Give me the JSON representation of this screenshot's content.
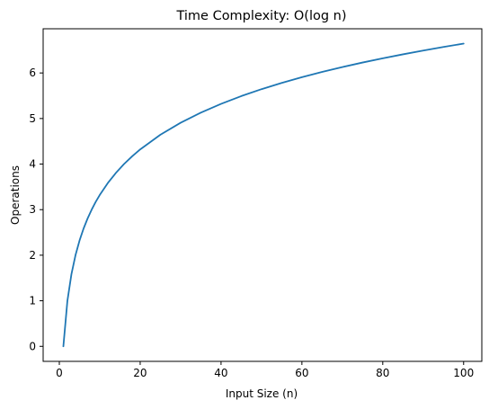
{
  "chart_data": {
    "type": "line",
    "title": "Time Complexity: O(log n)",
    "xlabel": "Input Size (n)",
    "ylabel": "Operations",
    "xlim": [
      -4,
      104.5
    ],
    "ylim": [
      -0.33,
      6.97
    ],
    "xticks": [
      0,
      20,
      40,
      60,
      80,
      100
    ],
    "yticks": [
      0,
      1,
      2,
      3,
      4,
      5,
      6
    ],
    "grid": false,
    "series": [
      {
        "color": "#1f77b4",
        "x": [
          1,
          2,
          3,
          4,
          5,
          6,
          7,
          8,
          9,
          10,
          12,
          14,
          16,
          18,
          20,
          25,
          30,
          35,
          40,
          45,
          50,
          55,
          60,
          65,
          70,
          75,
          80,
          85,
          90,
          95,
          100
        ],
        "y": [
          0,
          1.0,
          1.585,
          2.0,
          2.322,
          2.585,
          2.807,
          3.0,
          3.17,
          3.322,
          3.585,
          3.807,
          4.0,
          4.17,
          4.322,
          4.644,
          4.907,
          5.129,
          5.322,
          5.492,
          5.644,
          5.781,
          5.907,
          6.022,
          6.129,
          6.229,
          6.322,
          6.409,
          6.492,
          6.57,
          6.644
        ]
      }
    ]
  }
}
